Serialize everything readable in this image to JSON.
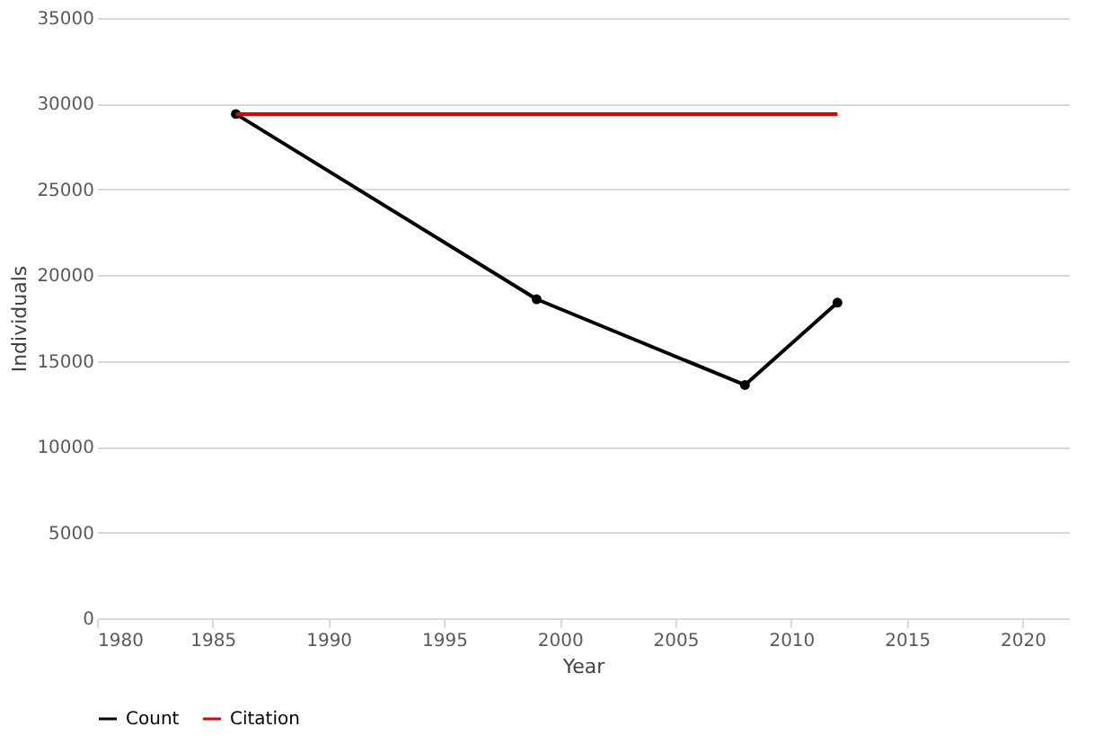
{
  "chart_data": {
    "type": "line",
    "xlabel": "Year",
    "ylabel": "Individuals",
    "xlim": [
      1980,
      2022
    ],
    "xticks": [
      1980,
      1985,
      1990,
      1995,
      2000,
      2005,
      2010,
      2015,
      2020
    ],
    "ylim": [
      0,
      35000
    ],
    "yticks": [
      0,
      5000,
      10000,
      15000,
      20000,
      25000,
      30000,
      35000
    ],
    "grid": "y",
    "legend": "bottom",
    "line_style": "solid",
    "series": [
      {
        "name": "Count",
        "color": "#000000",
        "marker": "circle",
        "x": [
          1986,
          1999,
          2008,
          2012
        ],
        "values": [
          29400,
          18600,
          13600,
          18400
        ]
      },
      {
        "name": "Citation",
        "color": "#e00000",
        "marker": "none",
        "x": [
          1986,
          2012
        ],
        "values": [
          29400,
          29400
        ]
      }
    ]
  }
}
